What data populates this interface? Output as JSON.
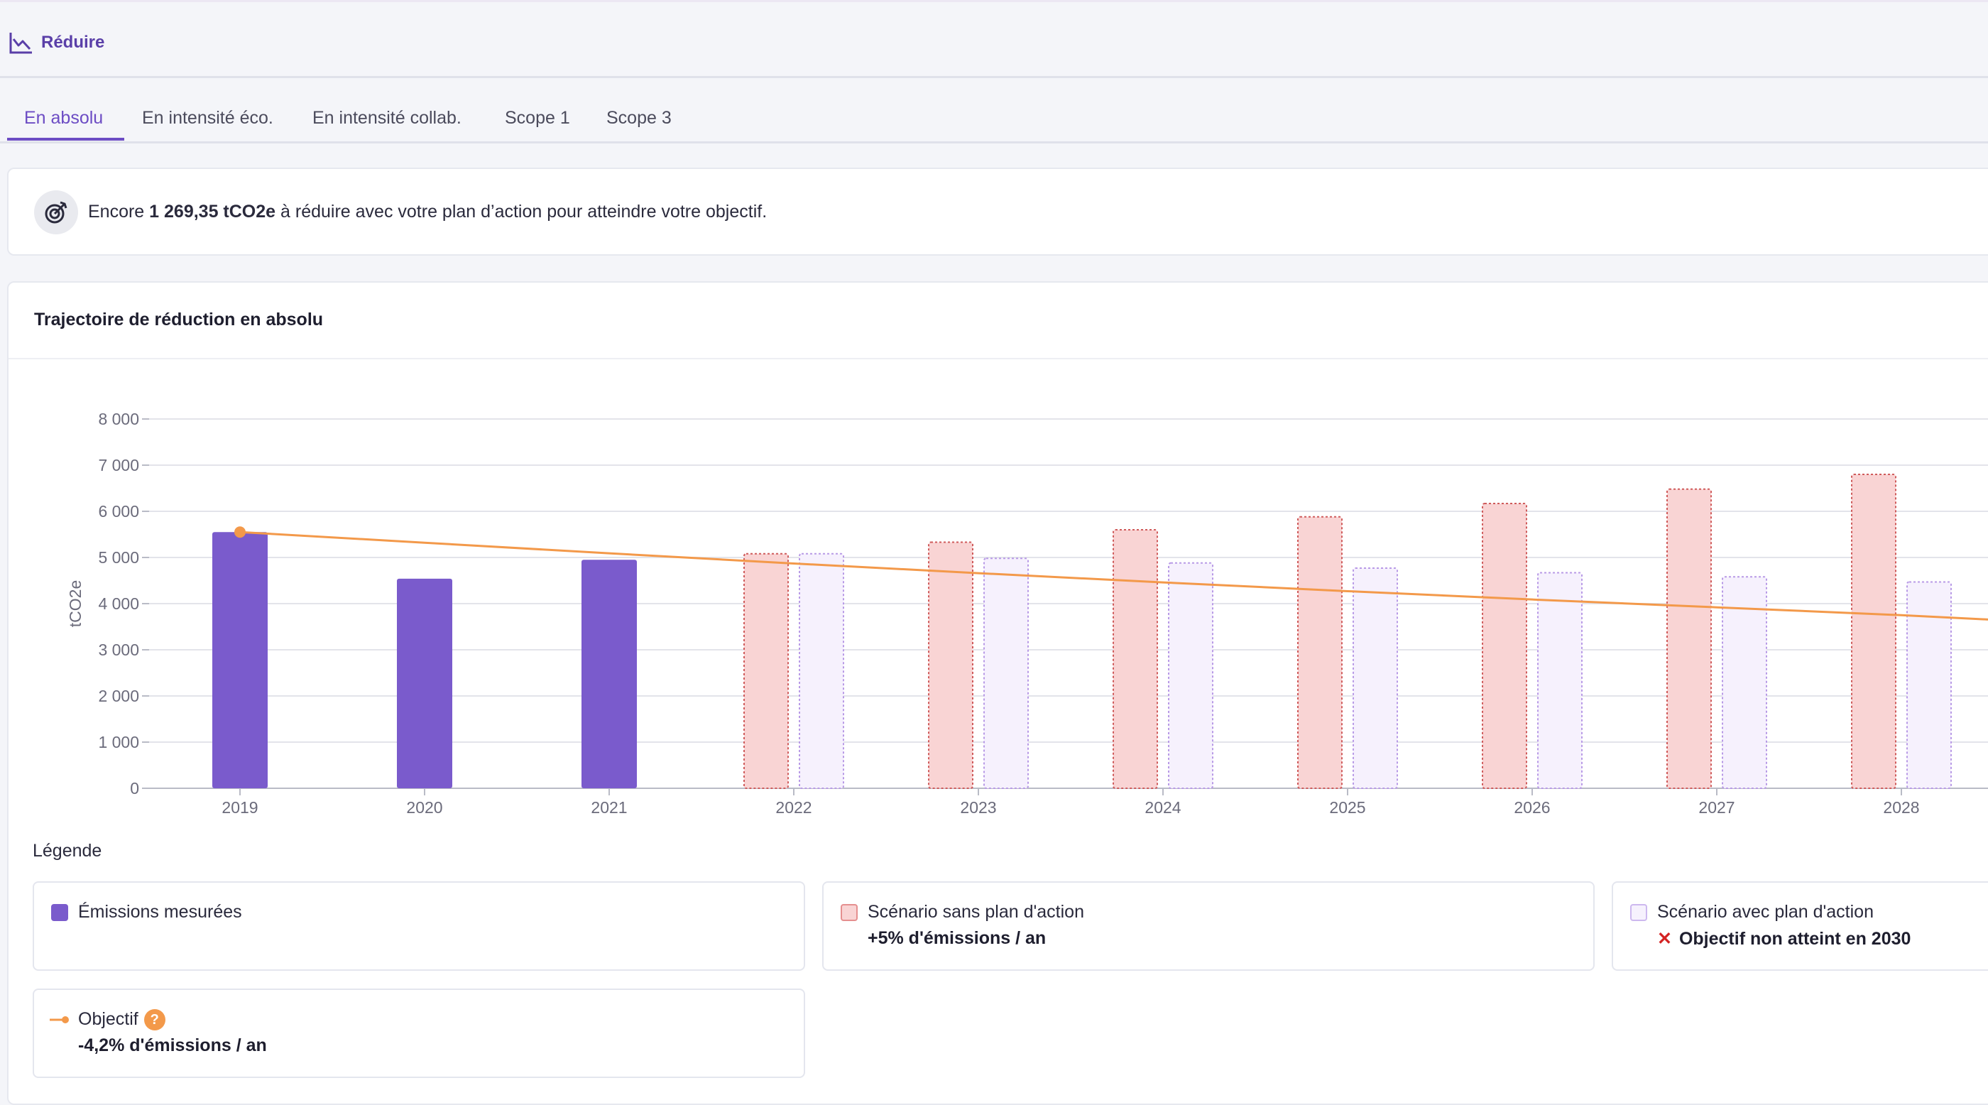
{
  "breadcrumb": {
    "icon": "chart-line-down-icon",
    "label": "Réduire"
  },
  "tabs": [
    {
      "label": "En absolu",
      "active": true
    },
    {
      "label": "En intensité éco."
    },
    {
      "label": "En intensité collab."
    },
    {
      "label": "Scope 1"
    },
    {
      "label": "Scope 3"
    }
  ],
  "info": {
    "icon": "target-icon",
    "prefix": "Encore ",
    "value": "1 269,35 tCO2e",
    "suffix": " à réduire avec votre plan d’action pour atteindre votre objectif."
  },
  "chart_card": {
    "title": "Trajectoire de réduction en absolu"
  },
  "chart_data": {
    "type": "bar",
    "ylabel": "tCO2e",
    "ylim": [
      0,
      8000
    ],
    "yticks": [
      0,
      1000,
      2000,
      3000,
      4000,
      5000,
      6000,
      7000,
      8000
    ],
    "ytick_labels": [
      "0",
      "1 000",
      "2 000",
      "3 000",
      "4 000",
      "5 000",
      "6 000",
      "7 000",
      "8 000"
    ],
    "categories": [
      "2019",
      "2020",
      "2021",
      "2022",
      "2023",
      "2024",
      "2025",
      "2026",
      "2027",
      "2028"
    ],
    "grid": true,
    "series": [
      {
        "name": "Émissions mesurées",
        "color": "#7a5bcc",
        "values": [
          5550,
          4540,
          4950,
          null,
          null,
          null,
          null,
          null,
          null,
          null
        ]
      },
      {
        "name": "Scénario sans plan d'action",
        "color": "#f9d4d4",
        "border": "#cf5b5b",
        "values": [
          null,
          null,
          null,
          5080,
          5330,
          5600,
          5880,
          6170,
          6480,
          6800
        ]
      },
      {
        "name": "Scénario avec plan d'action",
        "color": "#f6f1fd",
        "border": "#b89ae6",
        "values": [
          null,
          null,
          null,
          5080,
          4980,
          4880,
          4770,
          4670,
          4580,
          4470
        ]
      },
      {
        "name": "Objectif",
        "type": "line",
        "color": "#f3994a",
        "values": [
          5550,
          5320,
          5090,
          4870,
          4660,
          4460,
          4270,
          4090,
          3920,
          3750
        ]
      }
    ]
  },
  "legend": {
    "title": "Légende",
    "items": [
      {
        "label": "Émissions mesurées",
        "sub": ""
      },
      {
        "label": "Scénario sans plan d'action",
        "sub": "+5% d'émissions / an"
      },
      {
        "label": "Scénario avec plan d'action",
        "sub": "Objectif non atteint en 2030",
        "sub_icon": "close-icon"
      },
      {
        "label": "Objectif",
        "sub": "-4,2% d'émissions / an",
        "help": "?"
      }
    ]
  }
}
